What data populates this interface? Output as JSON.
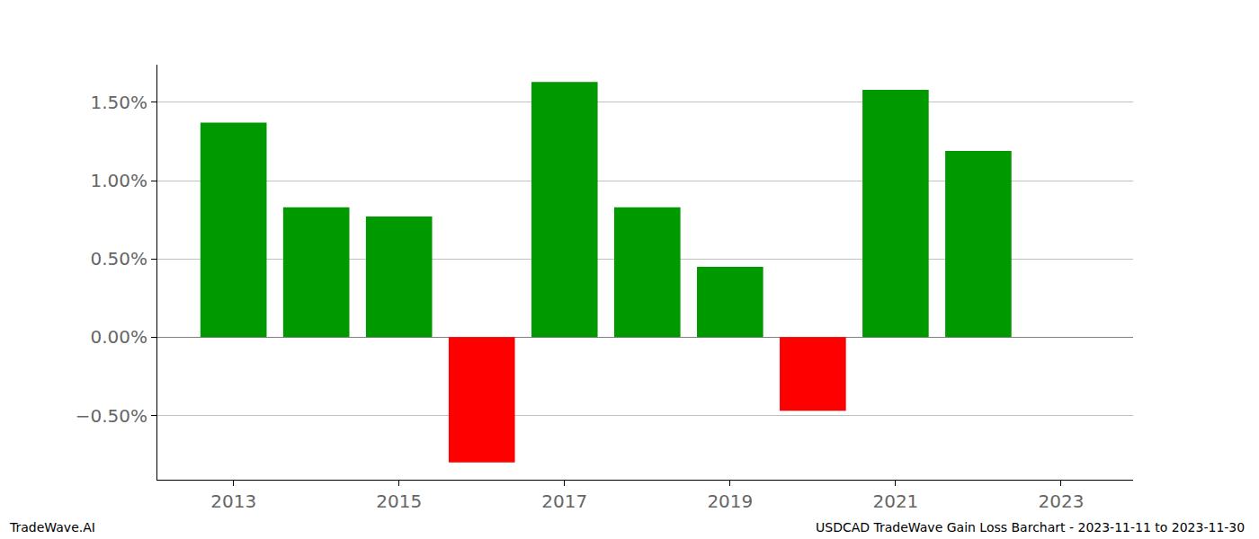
{
  "chart_data": {
    "type": "bar",
    "title": "USDCAD TradeWave Gain Loss Barchart - 2023-11-11 to 2023-11-30",
    "annotations": [
      "TradeWave.AI"
    ],
    "x": [
      2013,
      2014,
      2015,
      2016,
      2017,
      2018,
      2019,
      2020,
      2021,
      2022
    ],
    "values": [
      1.37,
      0.83,
      0.77,
      -0.8,
      1.63,
      0.83,
      0.45,
      -0.47,
      1.58,
      1.19
    ],
    "colors": [
      "#009900",
      "#009900",
      "#009900",
      "#ff0000",
      "#009900",
      "#009900",
      "#009900",
      "#ff0000",
      "#009900",
      "#009900"
    ],
    "xlim": [
      2012.08,
      2023.87
    ],
    "xticks": [
      2013,
      2015,
      2017,
      2019,
      2021,
      2023
    ],
    "ylim": [
      -0.91,
      1.74
    ],
    "yticks": [
      {
        "value": -0.5,
        "label": "−0.50%"
      },
      {
        "value": 0,
        "label": "0.00%"
      },
      {
        "value": 0.5,
        "label": "0.50%"
      },
      {
        "value": 1.0,
        "label": "1.00%"
      },
      {
        "value": 1.5,
        "label": "1.50%"
      }
    ],
    "grid": true
  }
}
